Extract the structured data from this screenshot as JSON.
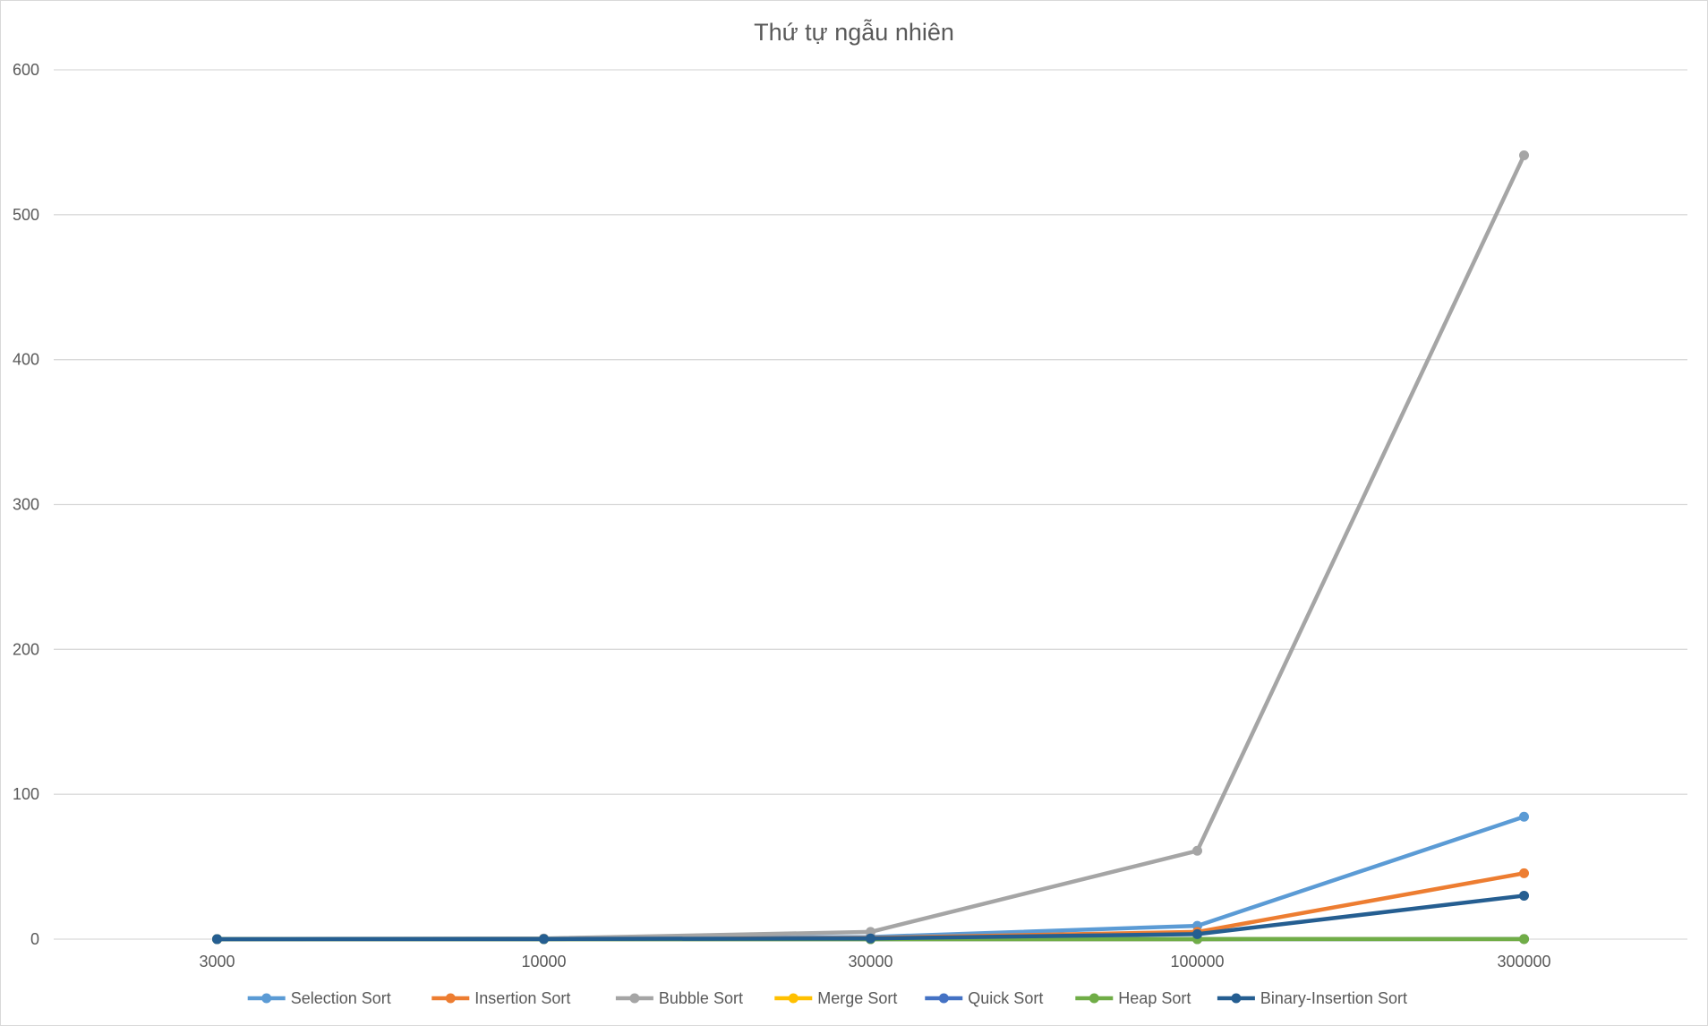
{
  "chart_data": {
    "type": "line",
    "title": "Thứ tự ngẫu nhiên",
    "xlabel": "",
    "ylabel": "",
    "categories": [
      "3000",
      "10000",
      "30000",
      "100000",
      "300000"
    ],
    "ylim": [
      0,
      600
    ],
    "yticks": [
      0,
      100,
      200,
      300,
      400,
      500,
      600
    ],
    "grid": true,
    "legend_position": "bottom",
    "series": [
      {
        "name": "Selection Sort",
        "color": "#5b9bd5",
        "values": [
          0.02,
          0.2,
          1.5,
          9.2,
          84.5
        ]
      },
      {
        "name": "Insertion Sort",
        "color": "#ed7d31",
        "values": [
          0.01,
          0.1,
          0.8,
          5.0,
          45.5
        ]
      },
      {
        "name": "Bubble Sort",
        "color": "#a5a5a5",
        "values": [
          0.05,
          0.5,
          5.0,
          61.0,
          541.0
        ]
      },
      {
        "name": "Merge Sort",
        "color": "#ffc000",
        "values": [
          0,
          0,
          0.01,
          0.03,
          0.1
        ]
      },
      {
        "name": "Quick Sort",
        "color": "#4472c4",
        "values": [
          0,
          0,
          0.01,
          0.02,
          0.05
        ]
      },
      {
        "name": "Heap Sort",
        "color": "#70ad47",
        "values": [
          0,
          0,
          0.01,
          0.03,
          0.1
        ]
      },
      {
        "name": "Binary-Insertion Sort",
        "color": "#255e91",
        "values": [
          0.01,
          0.1,
          0.5,
          3.5,
          30.0
        ]
      }
    ]
  }
}
